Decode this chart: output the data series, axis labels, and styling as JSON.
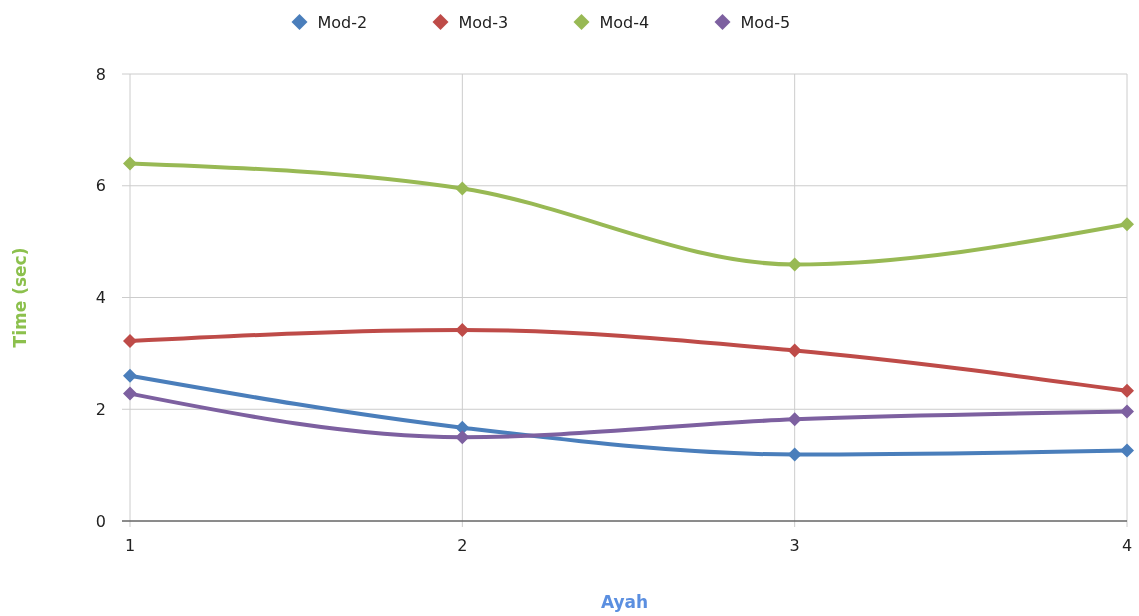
{
  "chart_data": {
    "type": "line",
    "xlabel": "Ayah",
    "ylabel": "Time (sec)",
    "x": [
      1,
      2,
      3,
      4
    ],
    "xlim": [
      1,
      4
    ],
    "xticks": [
      1,
      2,
      3,
      4
    ],
    "ylim": [
      0,
      8
    ],
    "yticks": [
      0,
      2,
      4,
      6,
      8
    ],
    "grid": true,
    "legend": "top",
    "marker": "diamond",
    "line_style": "solid",
    "series": [
      {
        "name": "Mod-2",
        "color": "#4a7ebb",
        "values": [
          2.6,
          1.67,
          1.19,
          1.26
        ]
      },
      {
        "name": "Mod-3",
        "color": "#be4b48",
        "values": [
          3.22,
          3.42,
          3.05,
          2.33
        ]
      },
      {
        "name": "Mod-4",
        "color": "#98b954",
        "values": [
          6.4,
          5.95,
          4.59,
          5.31
        ]
      },
      {
        "name": "Mod-5",
        "color": "#7d60a0",
        "values": [
          2.28,
          1.5,
          1.82,
          1.96
        ]
      }
    ]
  }
}
